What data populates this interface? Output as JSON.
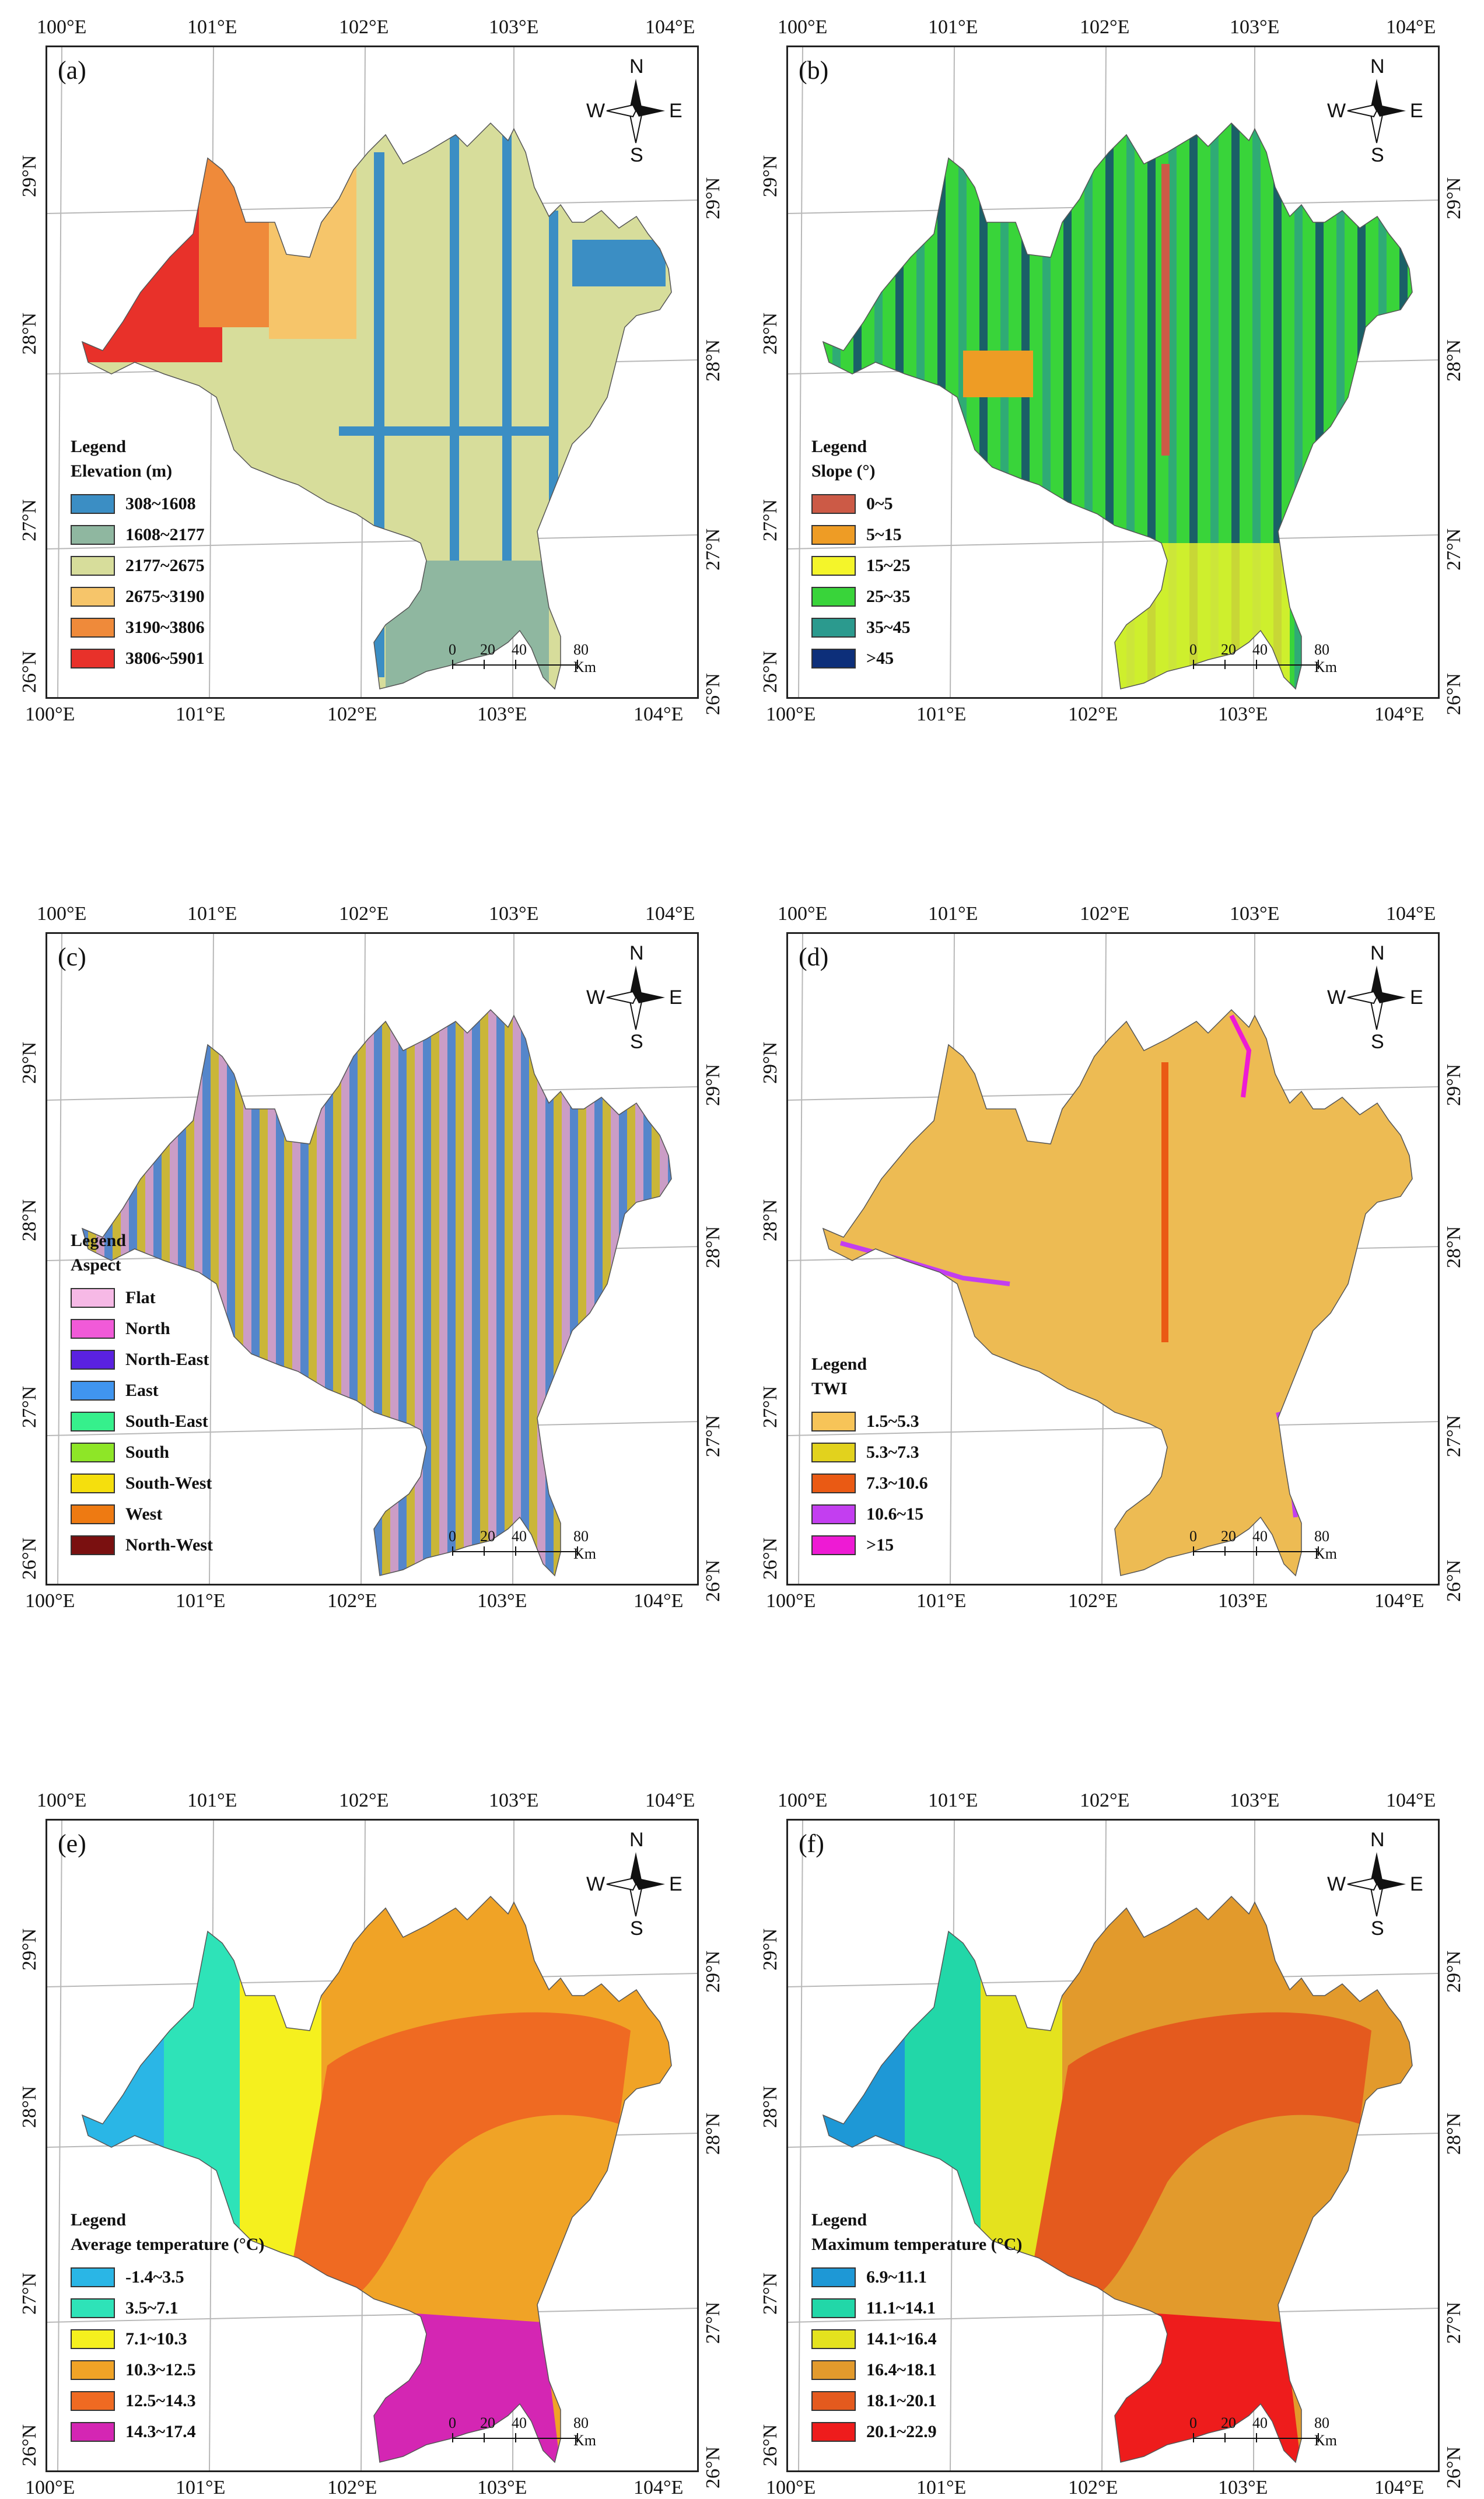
{
  "lon_labels": [
    "100°E",
    "101°E",
    "102°E",
    "103°E",
    "104°E"
  ],
  "lat_labels": [
    "29°N",
    "28°N",
    "27°N",
    "26°N"
  ],
  "compass": {
    "n": "N",
    "s": "S",
    "e": "E",
    "w": "W"
  },
  "scale": {
    "ticks": [
      "0",
      "20",
      "40",
      "80 Km"
    ]
  },
  "legend_heading": "Legend",
  "panels": [
    {
      "label": "(a)",
      "legend_title": "Elevation (m)",
      "classes": [
        {
          "label": "308~1608",
          "color": "#3b8ec4"
        },
        {
          "label": "1608~2177",
          "color": "#8fb7a0"
        },
        {
          "label": "2177~2675",
          "color": "#d7dd9b"
        },
        {
          "label": "2675~3190",
          "color": "#f6c56a"
        },
        {
          "label": "3190~3806",
          "color": "#ef8a3a"
        },
        {
          "label": "3806~5901",
          "color": "#e8312a"
        }
      ]
    },
    {
      "label": "(b)",
      "legend_title": "Slope (°)",
      "classes": [
        {
          "label": "0~5",
          "color": "#cc5a46"
        },
        {
          "label": "5~15",
          "color": "#ee9c25"
        },
        {
          "label": "15~25",
          "color": "#f4f52a"
        },
        {
          "label": "25~35",
          "color": "#39d43a"
        },
        {
          "label": "35~45",
          "color": "#2b9a8e"
        },
        {
          "label": ">45",
          "color": "#0d2f7a"
        }
      ]
    },
    {
      "label": "(c)",
      "legend_title": "Aspect",
      "classes": [
        {
          "label": "Flat",
          "color": "#f6b9e6"
        },
        {
          "label": "North",
          "color": "#f15ad8"
        },
        {
          "label": "North-East",
          "color": "#5a21e0"
        },
        {
          "label": "East",
          "color": "#4095ef"
        },
        {
          "label": "South-East",
          "color": "#36f08c"
        },
        {
          "label": "South",
          "color": "#8ee627"
        },
        {
          "label": "South-West",
          "color": "#f5df0d"
        },
        {
          "label": "West",
          "color": "#ee7a12"
        },
        {
          "label": "North-West",
          "color": "#7a1010"
        }
      ]
    },
    {
      "label": "(d)",
      "legend_title": "TWI",
      "classes": [
        {
          "label": "1.5~5.3",
          "color": "#f7c458"
        },
        {
          "label": "5.3~7.3",
          "color": "#e2d21d"
        },
        {
          "label": "7.3~10.6",
          "color": "#ea5a14"
        },
        {
          "label": "10.6~15",
          "color": "#c33ef0"
        },
        {
          "label": ">15",
          "color": "#ee1ad4"
        }
      ]
    },
    {
      "label": "(e)",
      "legend_title": "Average temperature (°C)",
      "classes": [
        {
          "label": "-1.4~3.5",
          "color": "#2ab6e6"
        },
        {
          "label": "3.5~7.1",
          "color": "#2ee3b8"
        },
        {
          "label": "7.1~10.3",
          "color": "#f5f01e"
        },
        {
          "label": "10.3~12.5",
          "color": "#f0a326"
        },
        {
          "label": "12.5~14.3",
          "color": "#ef6a22"
        },
        {
          "label": "14.3~17.4",
          "color": "#d426b3"
        }
      ]
    },
    {
      "label": "(f)",
      "legend_title": "Maximum temperature (°C)",
      "classes": [
        {
          "label": "6.9~11.1",
          "color": "#1e98d6"
        },
        {
          "label": "11.1~14.1",
          "color": "#22d7a8"
        },
        {
          "label": "14.1~16.4",
          "color": "#e4e21e"
        },
        {
          "label": "16.4~18.1",
          "color": "#e29a2c"
        },
        {
          "label": "18.1~20.1",
          "color": "#e45a1e"
        },
        {
          "label": "20.1~22.9",
          "color": "#ee1c1c"
        }
      ]
    }
  ]
}
